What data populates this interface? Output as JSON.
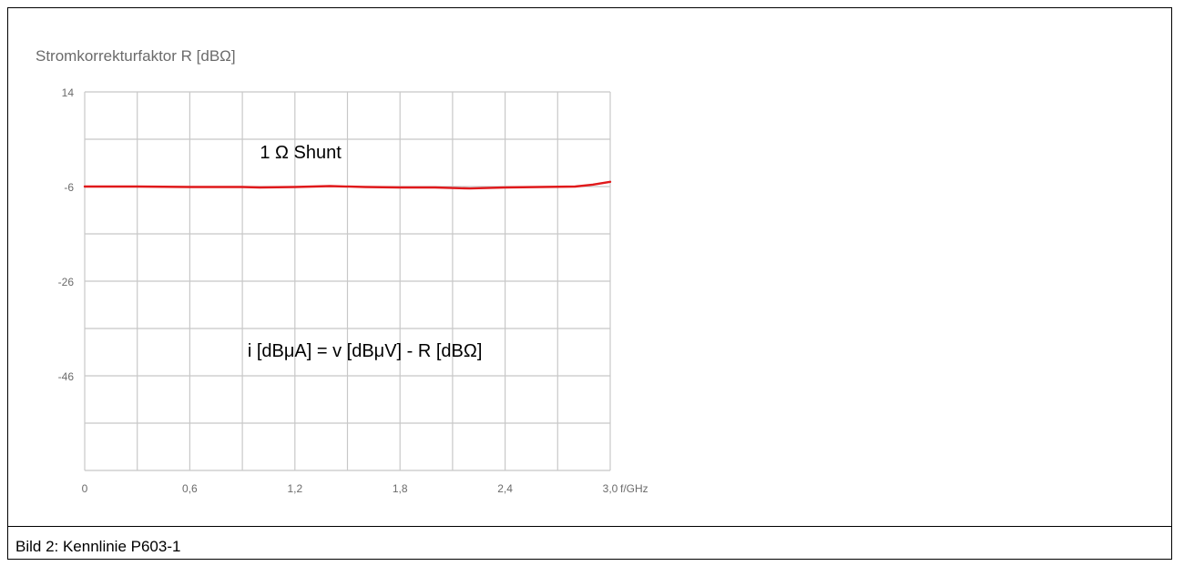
{
  "caption": "Bild 2: Kennlinie P603-1",
  "chart_data": {
    "type": "line",
    "title": "Stromkorrekturfaktor R [dBΩ]",
    "xlabel": "f/GHz",
    "ylabel": "",
    "xlim": [
      0,
      3.0
    ],
    "ylim": [
      -66,
      14
    ],
    "grid": true,
    "x_ticks": [
      0,
      0.6,
      1.2,
      1.8,
      2.4,
      3.0
    ],
    "x_tick_labels": [
      "0",
      "0,6",
      "1,2",
      "1,8",
      "2,4",
      "3,0"
    ],
    "y_ticks": [
      14,
      -6,
      -26,
      -46
    ],
    "y_tick_labels": [
      "14",
      "-6",
      "-26",
      "-46"
    ],
    "annotations": [
      {
        "text": "1 Ω Shunt",
        "x": 1.0,
        "y": 0
      },
      {
        "text": "i [dBμA] = v [dBμV] - R [dBΩ]",
        "x": 0.93,
        "y": -42
      }
    ],
    "series": [
      {
        "color": "#e0191b",
        "x": [
          0,
          0.3,
          0.6,
          0.9,
          1.0,
          1.2,
          1.4,
          1.6,
          1.8,
          2.0,
          2.2,
          2.4,
          2.6,
          2.8,
          2.9,
          3.0
        ],
        "y": [
          -6.0,
          -6.0,
          -6.1,
          -6.1,
          -6.2,
          -6.1,
          -5.9,
          -6.1,
          -6.2,
          -6.2,
          -6.4,
          -6.2,
          -6.1,
          -6.0,
          -5.6,
          -5.0
        ]
      }
    ]
  }
}
